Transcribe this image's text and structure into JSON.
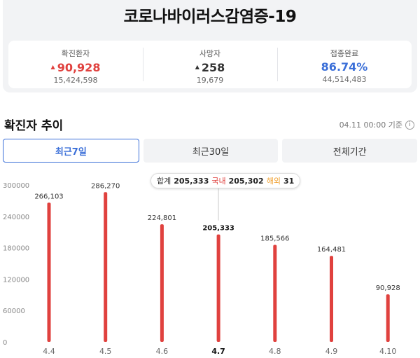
{
  "title": "코로나바이러스감염증-19",
  "stats": [
    {
      "label": "확진환자",
      "value": "90,928",
      "sub": "15,424,598",
      "arrow": "▲",
      "color": "red"
    },
    {
      "label": "사망자",
      "value": "258",
      "sub": "19,679",
      "arrow": "▲",
      "color": "dark"
    },
    {
      "label": "접종완료",
      "value": "86.74%",
      "sub": "44,514,483",
      "arrow": "",
      "color": "blue"
    }
  ],
  "section": {
    "title": "확진자 추이",
    "updated": "04.11 00:00 기준",
    "info_icon": "i"
  },
  "tabs": [
    {
      "label": "최근7일",
      "active": true
    },
    {
      "label": "최근30일",
      "active": false
    },
    {
      "label": "전체기간",
      "active": false
    }
  ],
  "tooltip": {
    "total_label": "합계",
    "total": "205,333",
    "domestic_label": "국내",
    "domestic": "205,302",
    "overseas_label": "해외",
    "overseas": "31"
  },
  "colors": {
    "bar": "#e0413e",
    "accent": "#3b6fd8"
  },
  "chart_data": {
    "type": "bar",
    "categories": [
      "4.4",
      "4.5",
      "4.6",
      "4.7",
      "4.8",
      "4.9",
      "4.10"
    ],
    "values": [
      266103,
      286270,
      224801,
      205333,
      185566,
      164481,
      90928
    ],
    "value_labels": [
      "266,103",
      "286,270",
      "224,801",
      "205,333",
      "185,566",
      "164,481",
      "90,928"
    ],
    "y_ticks": [
      0,
      60000,
      120000,
      180000,
      240000,
      300000
    ],
    "ylim": [
      0,
      300000
    ],
    "highlight_index": 3,
    "grid": false
  }
}
